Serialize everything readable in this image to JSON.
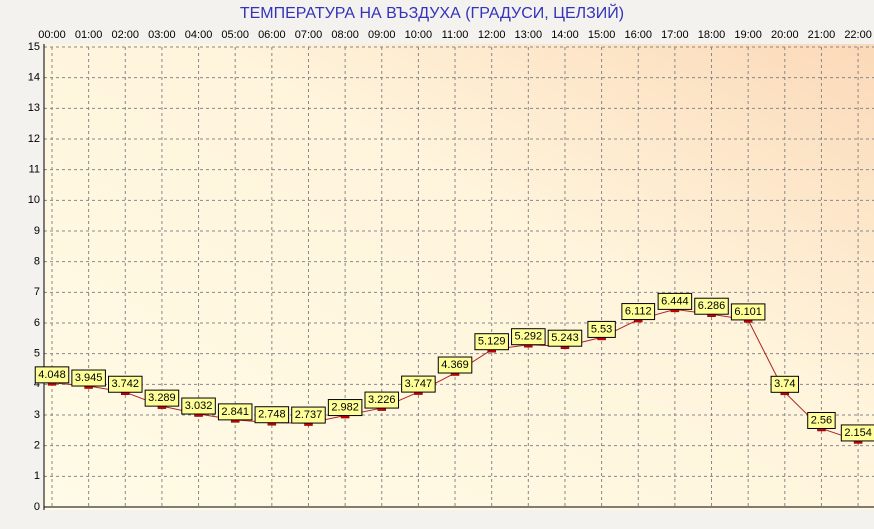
{
  "chart_data": {
    "type": "line",
    "title": "ТЕМПЕРАТУРА НА ВЪЗДУХА  (ГРАДУСИ, ЦЕЛЗИЙ)",
    "categories": [
      "00:00",
      "01:00",
      "02:00",
      "03:00",
      "04:00",
      "05:00",
      "06:00",
      "07:00",
      "08:00",
      "09:00",
      "10:00",
      "11:00",
      "12:00",
      "13:00",
      "14:00",
      "15:00",
      "16:00",
      "17:00",
      "18:00",
      "19:00",
      "20:00",
      "21:00",
      "22:00"
    ],
    "series": [
      {
        "name": "Temperature",
        "color": "#b22222",
        "values": [
          4.048,
          3.945,
          3.742,
          3.289,
          3.032,
          2.841,
          2.748,
          2.737,
          2.982,
          3.226,
          3.747,
          4.369,
          5.129,
          5.292,
          5.243,
          5.53,
          6.112,
          6.444,
          6.286,
          6.101,
          3.74,
          2.56,
          2.154
        ]
      }
    ],
    "ylim": [
      0,
      15
    ],
    "yticks": [
      0,
      1,
      2,
      3,
      4,
      5,
      6,
      7,
      8,
      9,
      10,
      11,
      12,
      13,
      14,
      15
    ],
    "grid": true
  }
}
